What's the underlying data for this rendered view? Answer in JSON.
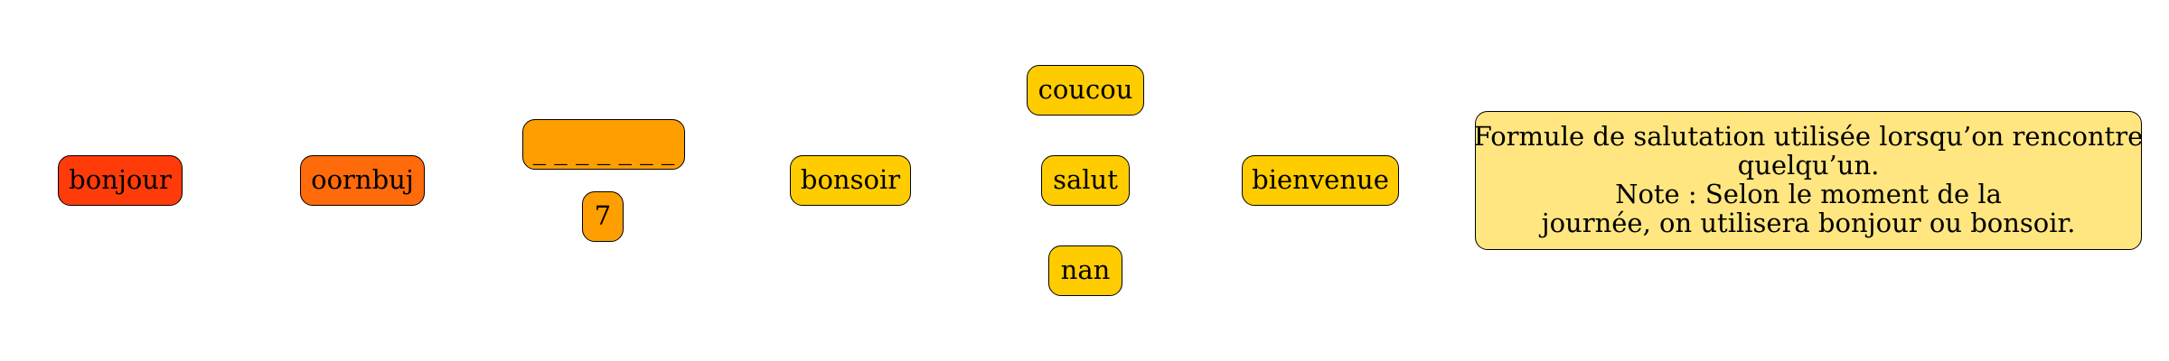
{
  "nodes": {
    "bonjour": {
      "label": "bonjour",
      "color": "#FF3B0A"
    },
    "oornbuj": {
      "label": "oornbuj",
      "color": "#FF6A0A"
    },
    "blanks": {
      "label": "_ _ _ _ _ _ _",
      "color": "#FF9E00"
    },
    "seven": {
      "label": "7",
      "color": "#FF9E00"
    },
    "bonsoir": {
      "label": "bonsoir",
      "color": "#FFCC00"
    },
    "coucou": {
      "label": "coucou",
      "color": "#FFCC00"
    },
    "salut": {
      "label": "salut",
      "color": "#FFCC00"
    },
    "nan": {
      "label": "nan",
      "color": "#FFCC00"
    },
    "bienvenue": {
      "label": "bienvenue",
      "color": "#FFCC00"
    }
  },
  "description": {
    "color": "#FFE680",
    "lines": [
      "Formule de salutation utilisée lorsqu’on rencontre",
      "quelqu’un.",
      "Note :  Selon le moment de la",
      "journée, on utilisera bonjour ou bonsoir."
    ]
  }
}
